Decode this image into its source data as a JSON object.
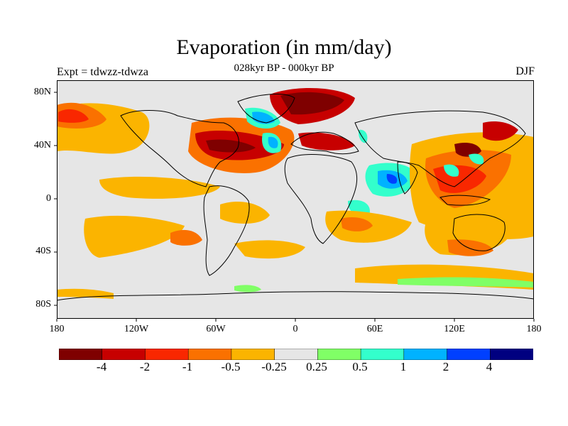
{
  "title": "Evaporation (in mm/day)",
  "subtitle": "028kyr BP - 000kyr BP",
  "left_label": "Expt = tdwzz-tdwza",
  "right_label": "DJF",
  "y_ticks": [
    "80N",
    "40N",
    "0",
    "40S",
    "80S"
  ],
  "x_ticks": [
    "180",
    "120W",
    "60W",
    "0",
    "60E",
    "120E",
    "180"
  ],
  "colorbar": {
    "colors": [
      "#7f0000",
      "#c70000",
      "#f92700",
      "#fa7100",
      "#fbb400",
      "#e6e6e6",
      "#80ff66",
      "#33ffcc",
      "#00b2ff",
      "#0040ff",
      "#000080"
    ],
    "labels": [
      "-4",
      "-2",
      "-1",
      "-0.5",
      "-0.25",
      "0.25",
      "0.5",
      "1",
      "2",
      "4"
    ]
  },
  "map": {
    "background": "#e6e6e6",
    "coastline_color": "#000000"
  }
}
